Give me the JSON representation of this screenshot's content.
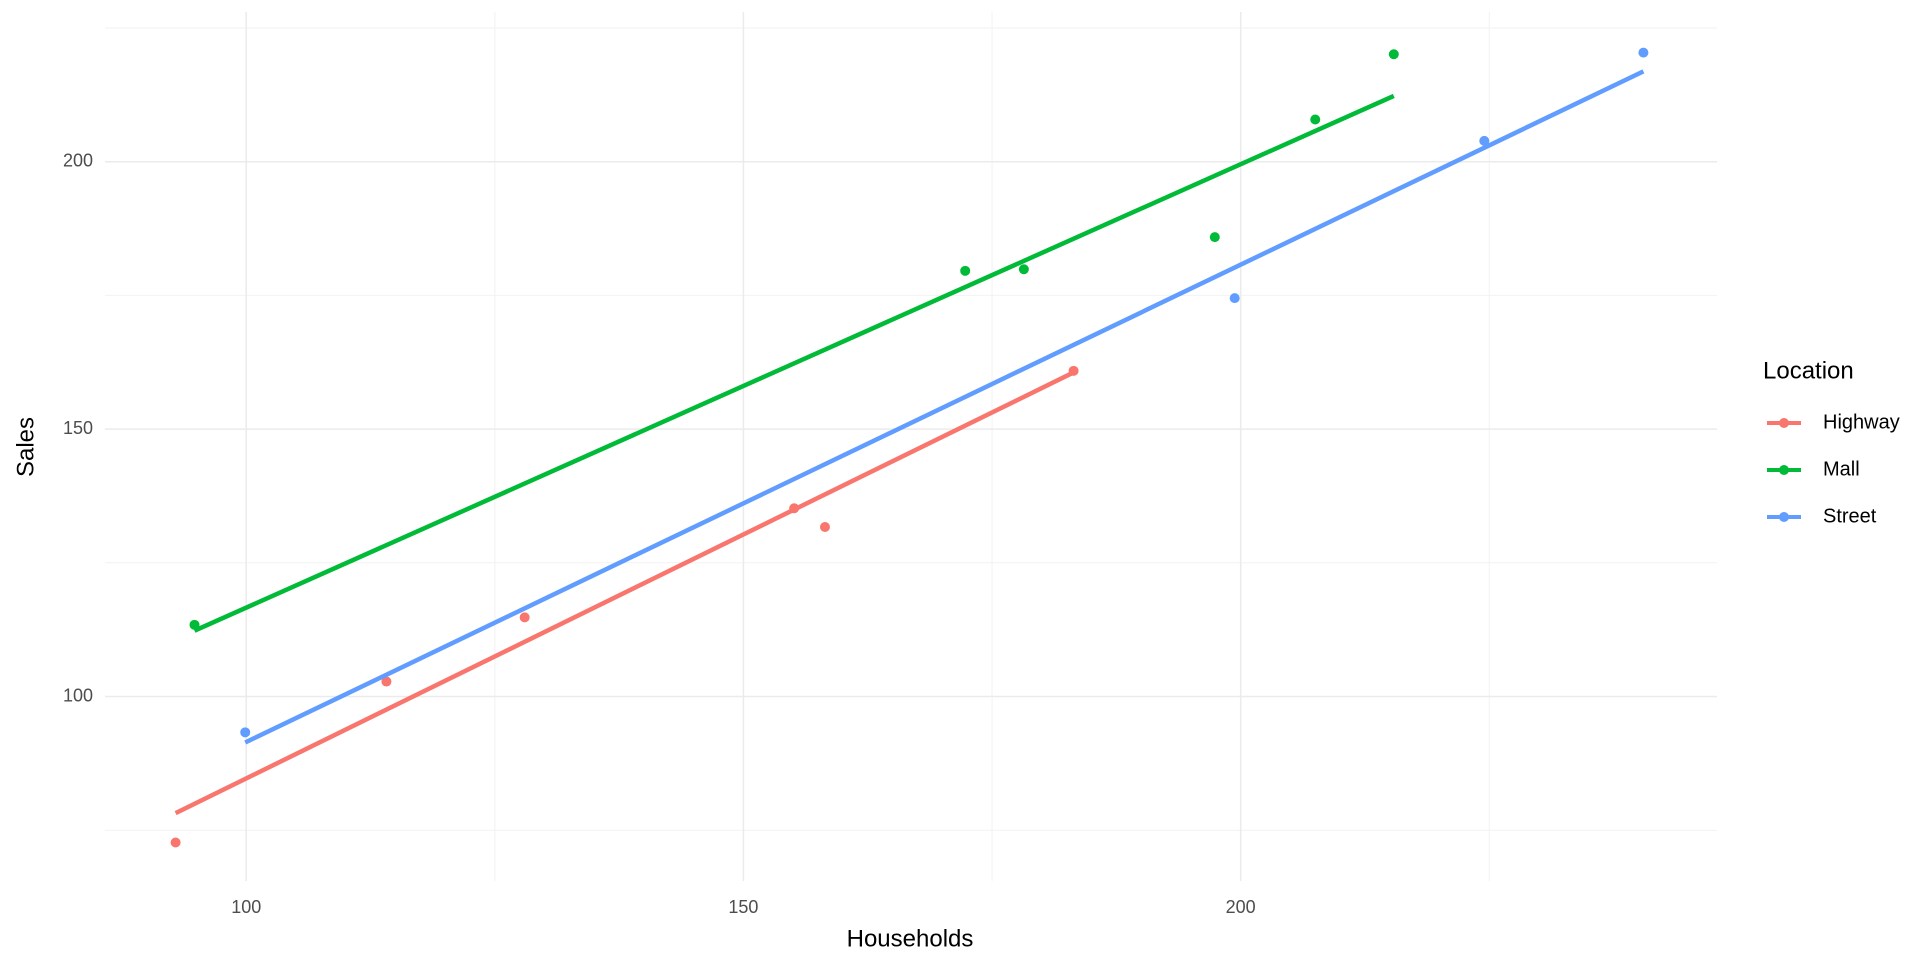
{
  "chart_data": {
    "type": "scatter",
    "x_label": "Households",
    "y_label": "Sales",
    "legend_title": "Location",
    "legend": "right",
    "grid": true,
    "xlim": [
      85.8,
      247.9
    ],
    "ylim": [
      65.5,
      228
    ],
    "xticks": [
      100,
      150,
      200
    ],
    "yticks": [
      100,
      150,
      200
    ],
    "xminor": [
      125,
      175,
      225
    ],
    "yminor": [
      75,
      125,
      175,
      225
    ],
    "series": [
      {
        "name": "Highway",
        "color": "#F8766D",
        "x": [
          92.9,
          114.1,
          128.0,
          155.1,
          158.2,
          183.2
        ],
        "values": [
          72.7,
          102.8,
          114.8,
          135.2,
          131.7,
          160.9
        ],
        "fit": {
          "x": [
            92.9,
            183.2
          ],
          "values": [
            78.2,
            160.6
          ]
        }
      },
      {
        "name": "Mall",
        "color": "#00BA38",
        "x": [
          94.8,
          172.3,
          178.2,
          197.4,
          207.5,
          215.4
        ],
        "values": [
          113.4,
          179.6,
          179.9,
          185.9,
          207.9,
          220.1
        ],
        "fit": {
          "x": [
            94.8,
            215.4
          ],
          "values": [
            112.3,
            212.3
          ]
        }
      },
      {
        "name": "Street",
        "color": "#619CFF",
        "x": [
          99.9,
          199.4,
          224.5,
          240.5
        ],
        "values": [
          93.3,
          174.5,
          203.9,
          220.4
        ],
        "fit": {
          "x": [
            99.9,
            240.5
          ],
          "values": [
            91.4,
            216.9
          ]
        }
      }
    ]
  }
}
